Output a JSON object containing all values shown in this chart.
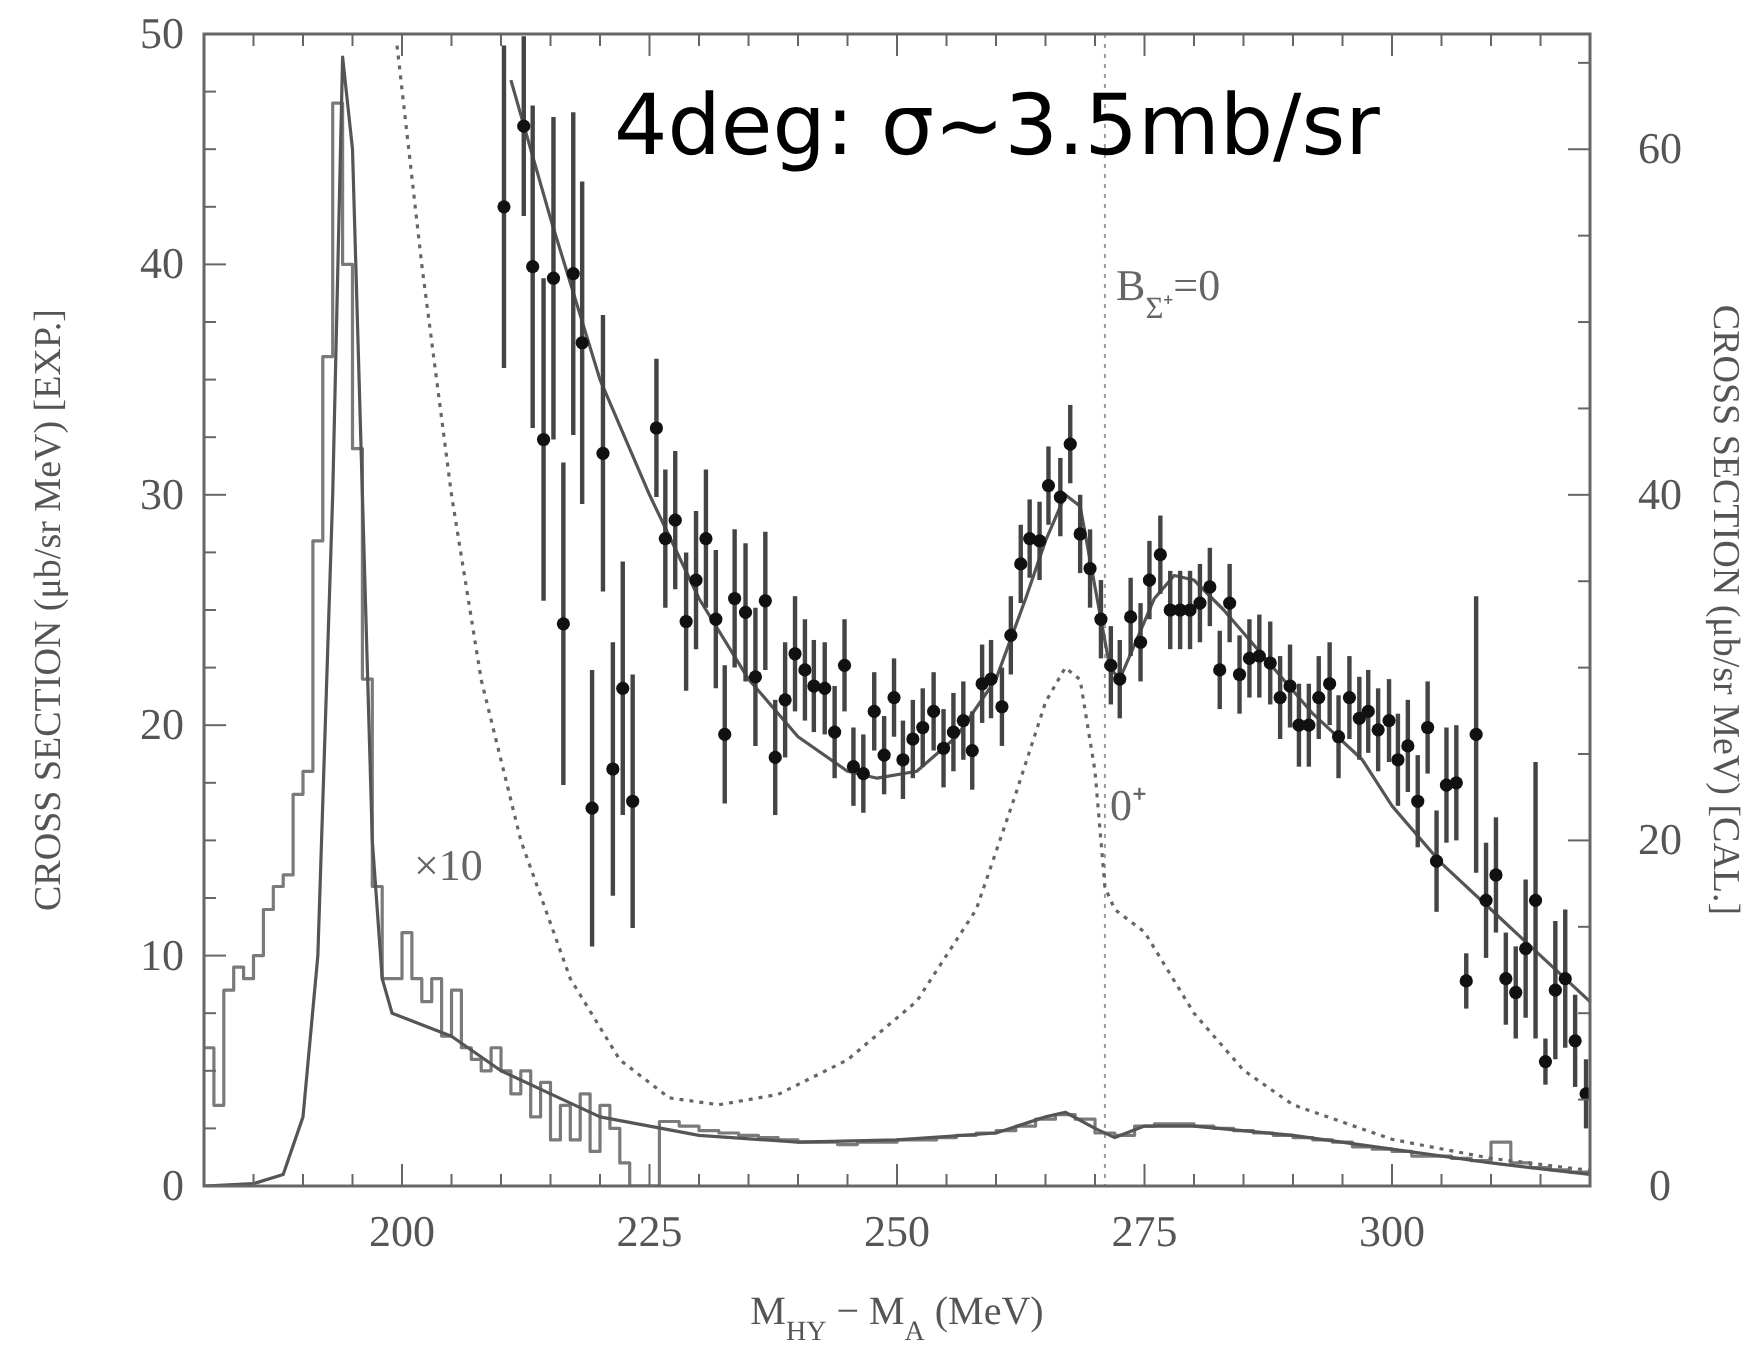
{
  "chart_data": {
    "type": "line",
    "xlabel": "M$_{HY}$ − M$_{A}$ (MeV)",
    "ylabel": "CROSS SECTION (μb/sr MeV) [EXP.]",
    "y2label": "CROSS SECTION (μb/sr MeV) [CAL.]",
    "xlim": [
      180,
      320
    ],
    "xticks": [
      {
        "value": 180,
        "label": null
      },
      {
        "value": 185,
        "label": null
      },
      {
        "value": 190,
        "label": null
      },
      {
        "value": 195,
        "label": null
      },
      200,
      {
        "value": 205,
        "label": null
      },
      {
        "value": 210,
        "label": null
      },
      {
        "value": 215,
        "label": null
      },
      {
        "value": 220,
        "label": null
      },
      225,
      {
        "value": 230,
        "label": null
      },
      {
        "value": 235,
        "label": null
      },
      {
        "value": 240,
        "label": null
      },
      {
        "value": 245,
        "label": null
      },
      250,
      {
        "value": 255,
        "label": null
      },
      {
        "value": 260,
        "label": null
      },
      {
        "value": 265,
        "label": null
      },
      {
        "value": 270,
        "label": null
      },
      275,
      {
        "value": 280,
        "label": null
      },
      {
        "value": 285,
        "label": null
      },
      {
        "value": 290,
        "label": null
      },
      {
        "value": 295,
        "label": null
      },
      300,
      {
        "value": 305,
        "label": null
      },
      {
        "value": 310,
        "label": null
      },
      {
        "value": 315,
        "label": null
      }
    ],
    "ylim": [
      0,
      50
    ],
    "yticks": [
      0,
      {
        "value": 2.5,
        "label": null
      },
      {
        "value": 5,
        "label": null
      },
      {
        "value": 7.5,
        "label": null
      },
      10,
      {
        "value": 12.5,
        "label": null
      },
      {
        "value": 15,
        "label": null
      },
      {
        "value": 17.5,
        "label": null
      },
      20,
      {
        "value": 22.5,
        "label": null
      },
      {
        "value": 25,
        "label": null
      },
      {
        "value": 27.5,
        "label": null
      },
      30,
      {
        "value": 32.5,
        "label": null
      },
      {
        "value": 35,
        "label": null
      },
      {
        "value": 37.5,
        "label": null
      },
      40,
      {
        "value": 42.5,
        "label": null
      },
      {
        "value": 45,
        "label": null
      },
      {
        "value": 47.5,
        "label": null
      },
      50
    ],
    "y2lim": [
      0,
      66.67
    ],
    "y2ticks": [
      0,
      {
        "value": 5,
        "label": null
      },
      {
        "value": 10,
        "label": null
      },
      {
        "value": 15,
        "label": null
      },
      20,
      {
        "value": 25,
        "label": null
      },
      {
        "value": 30,
        "label": null
      },
      {
        "value": 35,
        "label": null
      },
      40,
      {
        "value": 45,
        "label": null
      },
      {
        "value": 50,
        "label": null
      },
      {
        "value": 55,
        "label": null
      },
      60,
      {
        "value": 65,
        "label": null
      }
    ],
    "grid": false,
    "ref_lines": [
      {
        "axis": "x",
        "value": 271,
        "color": "#999999",
        "line_style": "dotted"
      }
    ],
    "annotations": [
      "4deg: σ~3.5mb/sr",
      "×10",
      "0⁺",
      "B$_{Σ⁺}$=0"
    ],
    "series": [
      {
        "type": "step",
        "color": "#7a7a7a",
        "line_style": "solid",
        "x": [
          180,
          181,
          182,
          183,
          184,
          185,
          186,
          187,
          188,
          189,
          190,
          191,
          192,
          193,
          194,
          195,
          196,
          197,
          198,
          199,
          200,
          201,
          202,
          203,
          204,
          205,
          206,
          207,
          208,
          209,
          210,
          211,
          212,
          213,
          214,
          215,
          216,
          217,
          218,
          219,
          220,
          221,
          222,
          223,
          224,
          226,
          228,
          230,
          232,
          234,
          236,
          238,
          240,
          242,
          244,
          246,
          248,
          250,
          252,
          254,
          256,
          258,
          260,
          262,
          264,
          266,
          268,
          270,
          272,
          274,
          276,
          278,
          280,
          282,
          284,
          286,
          288,
          290,
          292,
          294,
          296,
          298,
          300,
          302,
          304,
          306,
          308,
          310,
          312,
          314,
          316,
          318,
          320
        ],
        "values": [
          6,
          3.5,
          8.5,
          9.5,
          9,
          10,
          12,
          13,
          13.5,
          17,
          18,
          28,
          36,
          47,
          40,
          32,
          22,
          13,
          9,
          9,
          11,
          9,
          8,
          9,
          6.5,
          8.5,
          6,
          5.5,
          5,
          6,
          5,
          4,
          5,
          3,
          4.5,
          2,
          3.5,
          2,
          4,
          1.5,
          3.5,
          2.5,
          1,
          0,
          0,
          2.8,
          2.6,
          2.4,
          2.3,
          2.2,
          2.1,
          2,
          1.9,
          1.9,
          1.8,
          1.9,
          1.9,
          2,
          2,
          2.1,
          2.2,
          2.3,
          2.4,
          2.6,
          2.9,
          3.1,
          2.9,
          2.3,
          2.2,
          2.6,
          2.7,
          2.7,
          2.6,
          2.5,
          2.4,
          2.3,
          2.2,
          2.1,
          2,
          1.9,
          1.7,
          1.6,
          1.5,
          1.3,
          1.3,
          1.2,
          1.1,
          1.9,
          1,
          0.8,
          0.7,
          0.6,
          0.6
        ]
      },
      {
        "type": "line",
        "color": "#555555",
        "line_style": "solid",
        "x": [
          180,
          185,
          188,
          190,
          191.5,
          193,
          194,
          195,
          196,
          197,
          198,
          199,
          202,
          205,
          210,
          215,
          220,
          225,
          230,
          240,
          250,
          260,
          265,
          267,
          270,
          272,
          275,
          280,
          290,
          300,
          310,
          320
        ],
        "values": [
          0,
          0.1,
          0.5,
          3,
          10,
          30,
          49,
          45,
          30,
          15,
          9,
          7.5,
          7,
          6.5,
          5,
          4,
          3,
          2.6,
          2.2,
          1.9,
          2,
          2.3,
          3,
          3.2,
          2.5,
          2.1,
          2.6,
          2.6,
          2.2,
          1.6,
          1,
          0.5
        ]
      },
      {
        "type": "line",
        "color": "#666666",
        "line_style": "dotted",
        "axis": "y2",
        "x": [
          199.5,
          202,
          205,
          208,
          212,
          217,
          222,
          227,
          232,
          238,
          245,
          252,
          258,
          262,
          265,
          267,
          268.5,
          270,
          271,
          272,
          275,
          280,
          285,
          290,
          300,
          310,
          320
        ],
        "values": [
          66,
          53.3,
          40,
          29.3,
          20,
          12,
          7.3,
          5.1,
          4.7,
          5.3,
          7.3,
          10.7,
          16,
          22.7,
          28,
          30,
          29.3,
          24,
          17.3,
          16,
          14.7,
          10,
          6.7,
          4.7,
          2.7,
          1.6,
          0.9
        ]
      },
      {
        "color": "#555555",
        "line_style": "solid",
        "x": [
          211,
          215,
          220,
          225,
          230,
          235,
          240,
          245,
          248,
          252,
          256,
          260,
          263,
          265,
          267,
          268.5,
          270,
          271.5,
          272.5,
          274,
          276,
          278,
          280,
          283,
          287,
          292,
          297,
          300,
          305,
          310,
          315,
          320
        ],
        "values": [
          48,
          42,
          35,
          30,
          25.5,
          22,
          19.5,
          18,
          17.7,
          18,
          19.5,
          22,
          25.5,
          28,
          30,
          29.5,
          26,
          22.5,
          22,
          23.5,
          25.5,
          26.5,
          26.3,
          25,
          23,
          20.5,
          18.5,
          16.5,
          14,
          12,
          10,
          8
        ]
      },
      {
        "type": "scatter",
        "color": "#111111",
        "marker": "circle",
        "x": [
          210.3,
          212.3,
          213.2,
          214.3,
          215.3,
          216.3,
          217.3,
          218.2,
          219.2,
          220.3,
          221.3,
          222.3,
          223.3,
          225.7,
          226.6,
          227.6,
          228.7,
          229.7,
          230.7,
          231.7,
          232.6,
          233.6,
          234.7,
          235.7,
          236.7,
          237.7,
          238.7,
          239.7,
          240.7,
          241.6,
          242.7,
          243.7,
          244.7,
          245.6,
          246.6,
          247.7,
          248.7,
          249.7,
          250.6,
          251.6,
          252.6,
          253.7,
          254.7,
          255.7,
          256.7,
          257.6,
          258.6,
          259.5,
          260.6,
          261.5,
          262.5,
          263.4,
          264.4,
          265.3,
          266.5,
          267.5,
          268.5,
          269.5,
          270.6,
          271.6,
          272.5,
          273.6,
          274.6,
          275.5,
          276.6,
          277.6,
          278.6,
          279.6,
          280.6,
          281.6,
          282.6,
          283.6,
          284.6,
          285.6,
          286.6,
          287.7,
          288.7,
          289.7,
          290.6,
          291.6,
          292.6,
          293.7,
          294.6,
          295.7,
          296.7,
          297.6,
          298.6,
          299.7,
          300.6,
          301.6,
          302.6,
          303.6,
          304.5,
          305.5,
          306.5,
          307.5,
          308.5,
          309.5,
          310.5,
          311.5,
          312.5,
          313.5,
          314.5,
          315.5,
          316.5,
          317.5,
          318.5,
          319.6
        ],
        "values": [
          42.5,
          46,
          39.9,
          32.4,
          39.4,
          24.4,
          39.6,
          36.6,
          16.4,
          31.8,
          18.1,
          21.6,
          16.7,
          32.9,
          28.1,
          28.9,
          24.5,
          26.3,
          28.1,
          24.6,
          19.6,
          25.5,
          24.9,
          22.1,
          25.4,
          18.6,
          21.1,
          23.1,
          22.4,
          21.7,
          21.6,
          19.7,
          22.6,
          18.2,
          17.9,
          20.6,
          18.7,
          21.2,
          18.5,
          19.4,
          19.9,
          20.6,
          19,
          19.7,
          20.2,
          18.9,
          21.8,
          22,
          20.8,
          23.9,
          27,
          28.1,
          28,
          30.4,
          29.9,
          32.2,
          28.3,
          26.8,
          24.6,
          22.6,
          22,
          24.7,
          23.6,
          26.3,
          27.4,
          25,
          25,
          25,
          25.3,
          26,
          22.4,
          25.3,
          22.2,
          22.9,
          23,
          22.7,
          21.2,
          21.7,
          20,
          20,
          21.2,
          21.8,
          19.5,
          21.2,
          20.3,
          20.6,
          19.8,
          20.2,
          18.5,
          19.1,
          16.7,
          19.9,
          14.1,
          17.4,
          17.5,
          8.9,
          19.6,
          12.4,
          13.5,
          9,
          8.4,
          10.3,
          12.4,
          5.4,
          8.5,
          9,
          6.3,
          4
        ],
        "errors": [
          7,
          3.9,
          7,
          7,
          7,
          7,
          7,
          7,
          6,
          6,
          5.5,
          5.5,
          5.5,
          3,
          3,
          3,
          3,
          3,
          3,
          3,
          3,
          3,
          3,
          3,
          3,
          2.5,
          2.5,
          2.5,
          2.2,
          2,
          2,
          2,
          2,
          1.7,
          1.7,
          1.7,
          1.7,
          1.7,
          1.7,
          1.7,
          1.7,
          1.7,
          1.7,
          1.7,
          1.7,
          1.7,
          1.7,
          1.7,
          1.7,
          1.7,
          1.7,
          1.7,
          1.7,
          1.7,
          1.7,
          1.7,
          1.7,
          1.7,
          1.7,
          1.7,
          1.7,
          1.7,
          1.7,
          1.7,
          1.7,
          1.7,
          1.7,
          1.7,
          1.7,
          1.7,
          1.7,
          1.7,
          1.7,
          1.7,
          1.8,
          1.8,
          1.8,
          1.8,
          1.8,
          1.8,
          1.8,
          1.8,
          1.8,
          1.8,
          1.8,
          1.8,
          1.8,
          1.8,
          2,
          2,
          2,
          2,
          2.2,
          2.5,
          2.5,
          1.2,
          6,
          2.5,
          2.5,
          2,
          2,
          3,
          6,
          1,
          3,
          3,
          2,
          1.5
        ]
      }
    ]
  }
}
